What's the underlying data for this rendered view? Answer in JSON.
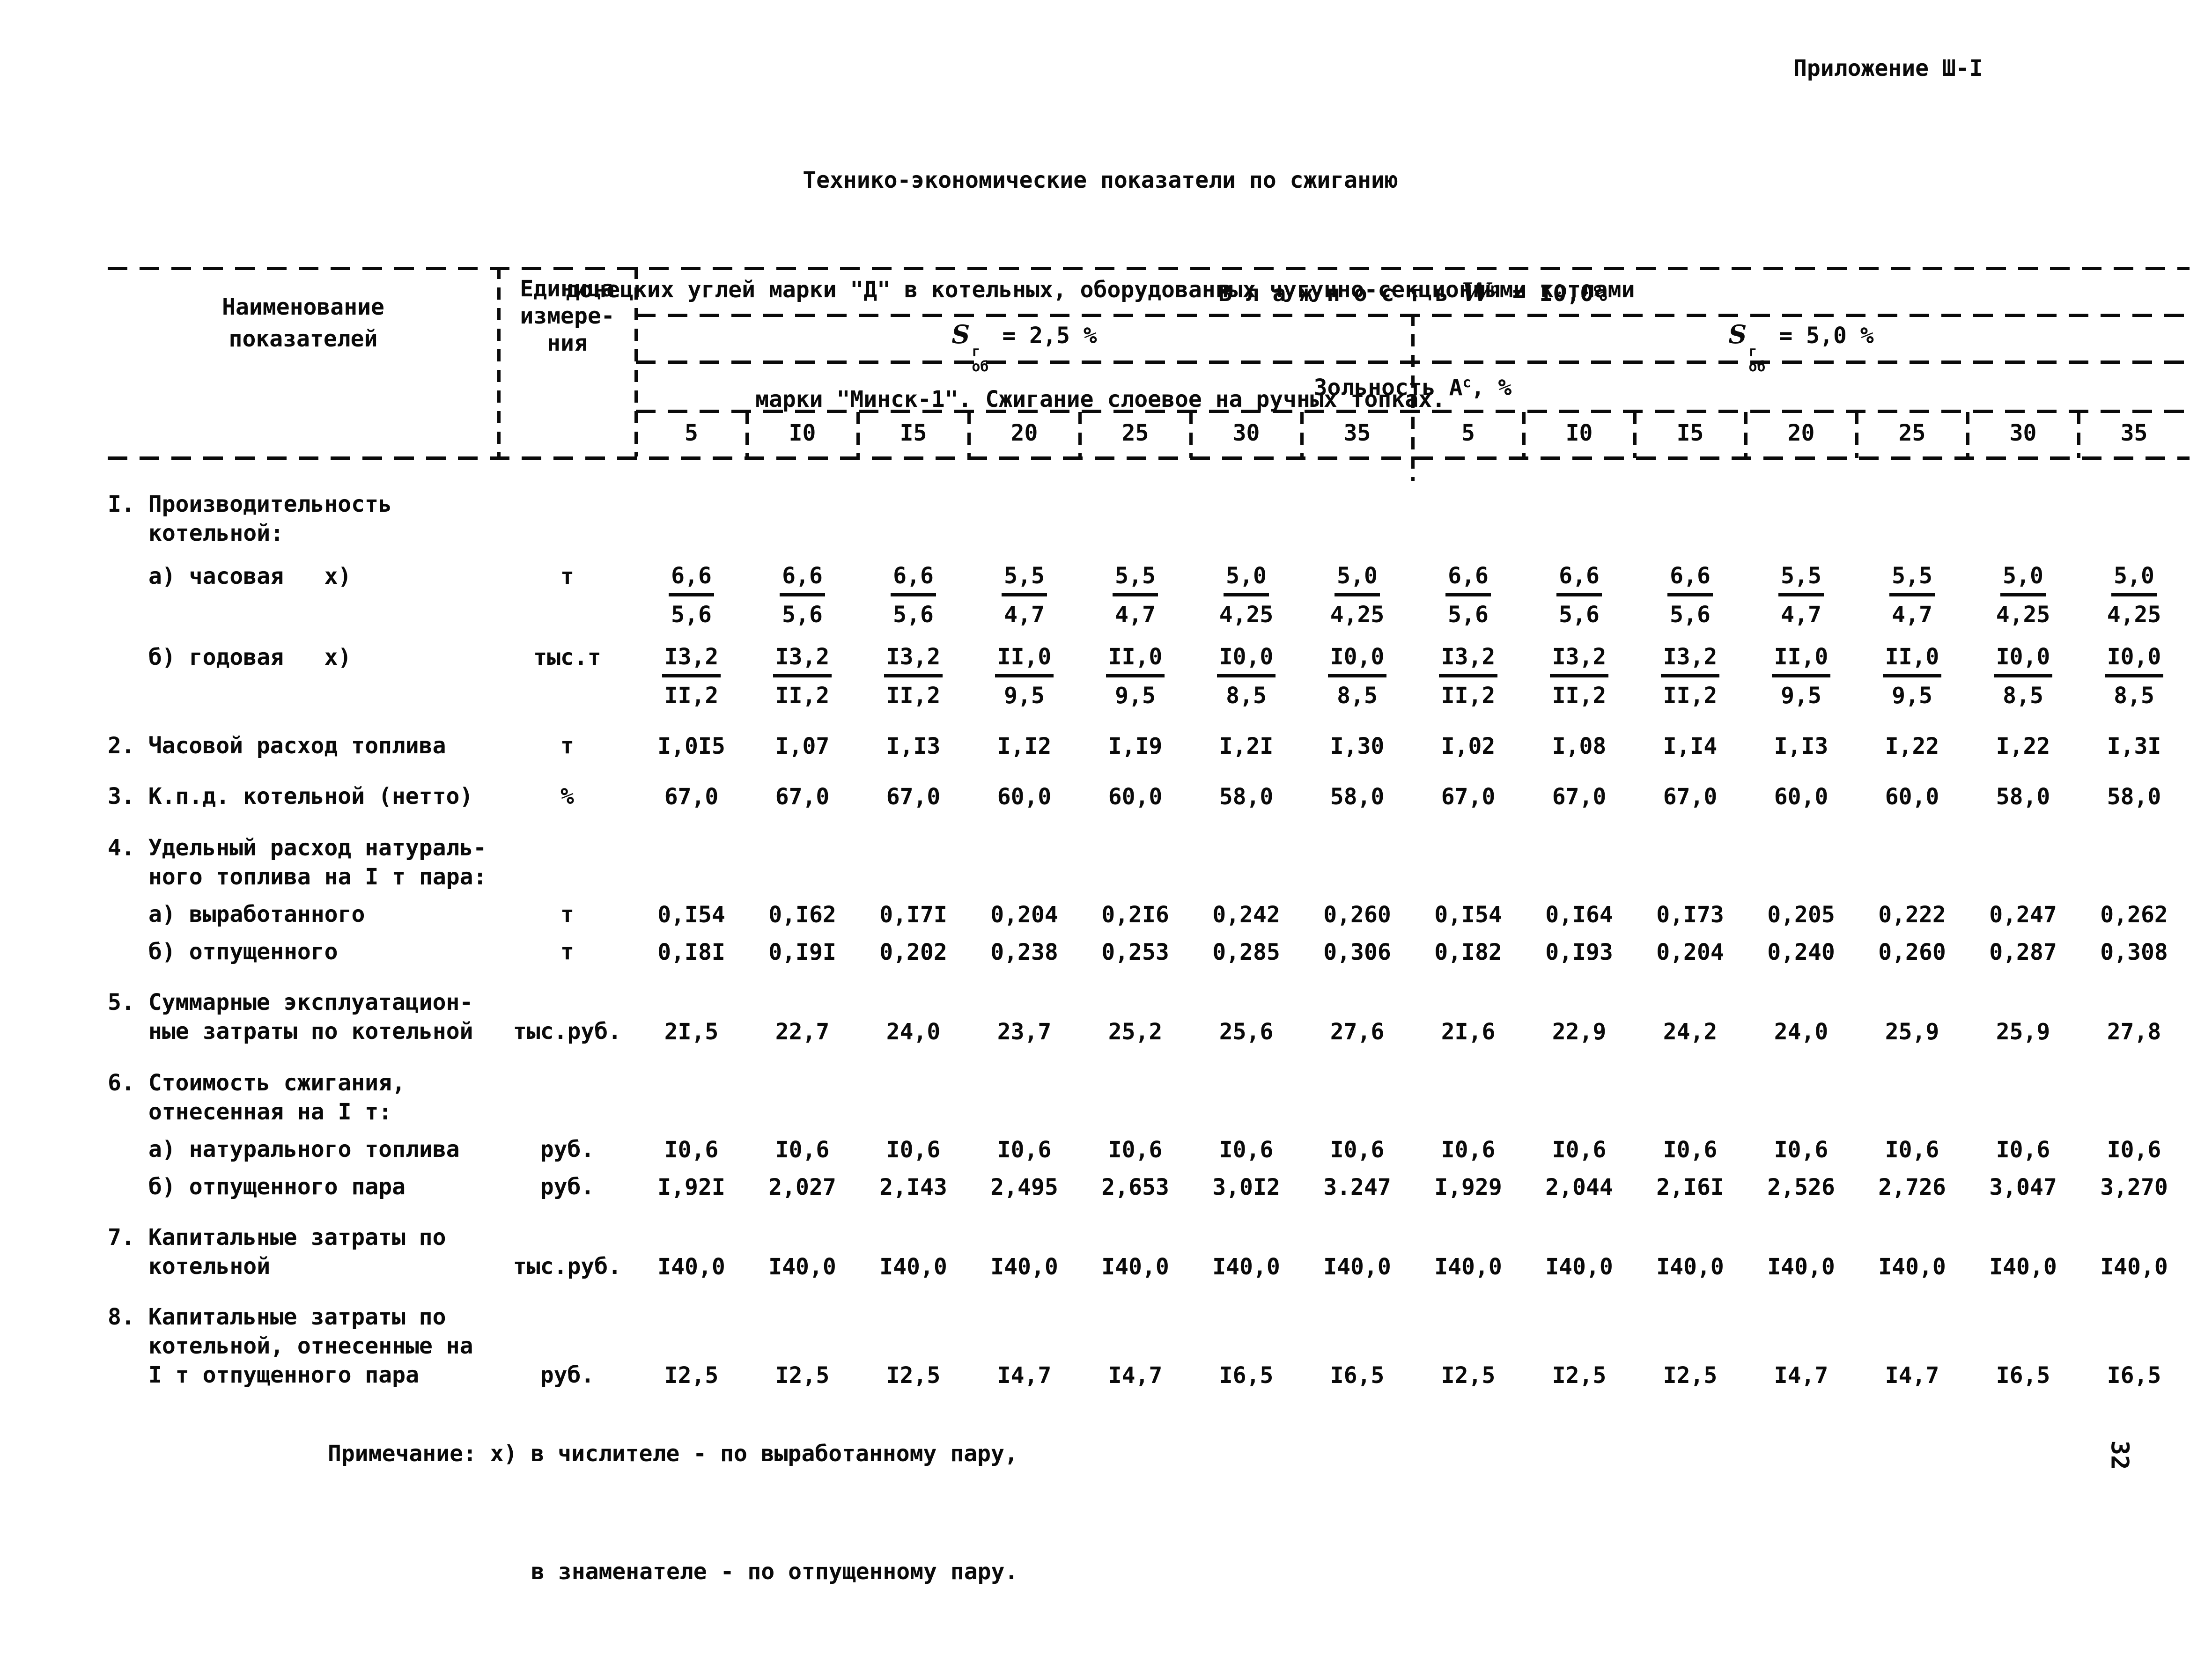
{
  "page": {
    "appendix": "Приложение Ш-I",
    "page_number": "32",
    "title_lines": [
      "Технико-экономические показатели по сжиганию",
      "донецких углей марки \"Д\" в котельных, оборудованных чугунно-секционными котлами",
      "марки \"Минск-1\". Сжигание слоевое на ручных топках."
    ]
  },
  "table": {
    "header": {
      "name_col": [
        "Наименование",
        "показателей"
      ],
      "unit_col": [
        "Единица",
        "измере-",
        "ния"
      ],
      "moisture": {
        "label": "В л а ж н о с т ь",
        "symbol": "W",
        "sup": "р",
        "rest": "= I0,0%"
      },
      "sulfur_left": {
        "symbol": "S",
        "sup": "г",
        "sub": "об",
        "rest": "= 2,5 %"
      },
      "sulfur_right": {
        "symbol": "S",
        "sup": "г",
        "sub": "об",
        "rest": "= 5,0 %"
      },
      "ash": {
        "label": "Зольность",
        "symbol": "А",
        "sup": "с",
        "rest": ", %"
      },
      "ash_columns": [
        "5",
        "I0",
        "I5",
        "20",
        "25",
        "30",
        "35",
        "5",
        "I0",
        "I5",
        "20",
        "25",
        "30",
        "35"
      ]
    },
    "rows": [
      {
        "type": "heading",
        "lines": [
          "I. Производительность",
          "котельной:"
        ]
      },
      {
        "type": "fraction",
        "sub": true,
        "lines": [
          "а) часовая   х)"
        ],
        "unit": "т",
        "values": [
          [
            "6,6",
            "5,6"
          ],
          [
            "6,6",
            "5,6"
          ],
          [
            "6,6",
            "5,6"
          ],
          [
            "5,5",
            "4,7"
          ],
          [
            "5,5",
            "4,7"
          ],
          [
            "5,0",
            "4,25"
          ],
          [
            "5,0",
            "4,25"
          ],
          [
            "6,6",
            "5,6"
          ],
          [
            "6,6",
            "5,6"
          ],
          [
            "6,6",
            "5,6"
          ],
          [
            "5,5",
            "4,7"
          ],
          [
            "5,5",
            "4,7"
          ],
          [
            "5,0",
            "4,25"
          ],
          [
            "5,0",
            "4,25"
          ]
        ]
      },
      {
        "type": "fraction",
        "sub": true,
        "lines": [
          "б) годовая   х)"
        ],
        "unit": "тыс.т",
        "values": [
          [
            "I3,2",
            "II,2"
          ],
          [
            "I3,2",
            "II,2"
          ],
          [
            "I3,2",
            "II,2"
          ],
          [
            "II,0",
            "9,5"
          ],
          [
            "II,0",
            "9,5"
          ],
          [
            "I0,0",
            "8,5"
          ],
          [
            "I0,0",
            "8,5"
          ],
          [
            "I3,2",
            "II,2"
          ],
          [
            "I3,2",
            "II,2"
          ],
          [
            "I3,2",
            "II,2"
          ],
          [
            "II,0",
            "9,5"
          ],
          [
            "II,0",
            "9,5"
          ],
          [
            "I0,0",
            "8,5"
          ],
          [
            "I0,0",
            "8,5"
          ]
        ]
      },
      {
        "type": "row",
        "lines": [
          "2. Часовой расход топлива"
        ],
        "unit": "т",
        "values": [
          "I,0I5",
          "I,07",
          "I,I3",
          "I,I2",
          "I,I9",
          "I,2I",
          "I,30",
          "I,02",
          "I,08",
          "I,I4",
          "I,I3",
          "I,22",
          "I,22",
          "I,3I"
        ]
      },
      {
        "type": "row",
        "lines": [
          "3. К.п.д. котельной (нетто)"
        ],
        "unit": "%",
        "values": [
          "67,0",
          "67,0",
          "67,0",
          "60,0",
          "60,0",
          "58,0",
          "58,0",
          "67,0",
          "67,0",
          "67,0",
          "60,0",
          "60,0",
          "58,0",
          "58,0"
        ]
      },
      {
        "type": "heading",
        "lines": [
          "4. Удельный расход натураль-",
          "ного топлива на I т пара:"
        ]
      },
      {
        "type": "row",
        "sub": true,
        "lines": [
          "а) выработанного"
        ],
        "unit": "т",
        "values": [
          "0,I54",
          "0,I62",
          "0,I7I",
          "0,204",
          "0,2I6",
          "0,242",
          "0,260",
          "0,I54",
          "0,I64",
          "0,I73",
          "0,205",
          "0,222",
          "0,247",
          "0,262"
        ]
      },
      {
        "type": "row",
        "sub": true,
        "lines": [
          "б) отпущенного"
        ],
        "unit": "т",
        "values": [
          "0,I8I",
          "0,I9I",
          "0,202",
          "0,238",
          "0,253",
          "0,285",
          "0,306",
          "0,I82",
          "0,I93",
          "0,204",
          "0,240",
          "0,260",
          "0,287",
          "0,308"
        ]
      },
      {
        "type": "row",
        "lines": [
          "5. Суммарные эксплуатацион-",
          "ные затраты по котельной"
        ],
        "unit": "тыс.руб.",
        "values": [
          "2I,5",
          "22,7",
          "24,0",
          "23,7",
          "25,2",
          "25,6",
          "27,6",
          "2I,6",
          "22,9",
          "24,2",
          "24,0",
          "25,9",
          "25,9",
          "27,8"
        ]
      },
      {
        "type": "heading",
        "lines": [
          "6. Стоимость сжигания,",
          "отнесенная на I т:"
        ]
      },
      {
        "type": "row",
        "sub": true,
        "lines": [
          "а) натурального топлива"
        ],
        "unit": "руб.",
        "values": [
          "I0,6",
          "I0,6",
          "I0,6",
          "I0,6",
          "I0,6",
          "I0,6",
          "I0,6",
          "I0,6",
          "I0,6",
          "I0,6",
          "I0,6",
          "I0,6",
          "I0,6",
          "I0,6"
        ]
      },
      {
        "type": "row",
        "sub": true,
        "lines": [
          "б) отпущенного пара"
        ],
        "unit": "руб.",
        "values": [
          "I,92I",
          "2,027",
          "2,I43",
          "2,495",
          "2,653",
          "3,0I2",
          "3.247",
          "I,929",
          "2,044",
          "2,I6I",
          "2,526",
          "2,726",
          "3,047",
          "3,270"
        ]
      },
      {
        "type": "row",
        "lines": [
          "7. Капитальные затраты по",
          "котельной"
        ],
        "unit": "тыс.руб.",
        "values": [
          "I40,0",
          "I40,0",
          "I40,0",
          "I40,0",
          "I40,0",
          "I40,0",
          "I40,0",
          "I40,0",
          "I40,0",
          "I40,0",
          "I40,0",
          "I40,0",
          "I40,0",
          "I40,0"
        ]
      },
      {
        "type": "row",
        "lines": [
          "8. Капитальные затраты по",
          "котельной, отнесенные на",
          "I т отпущенного пара"
        ],
        "unit": "руб.",
        "values": [
          "I2,5",
          "I2,5",
          "I2,5",
          "I4,7",
          "I4,7",
          "I6,5",
          "I6,5",
          "I2,5",
          "I2,5",
          "I2,5",
          "I4,7",
          "I4,7",
          "I6,5",
          "I6,5"
        ]
      }
    ]
  },
  "note": {
    "lines": [
      "Примечание: х) в числителе - по выработанному пару,",
      "в знаменателе - по отпущенному пару."
    ]
  }
}
